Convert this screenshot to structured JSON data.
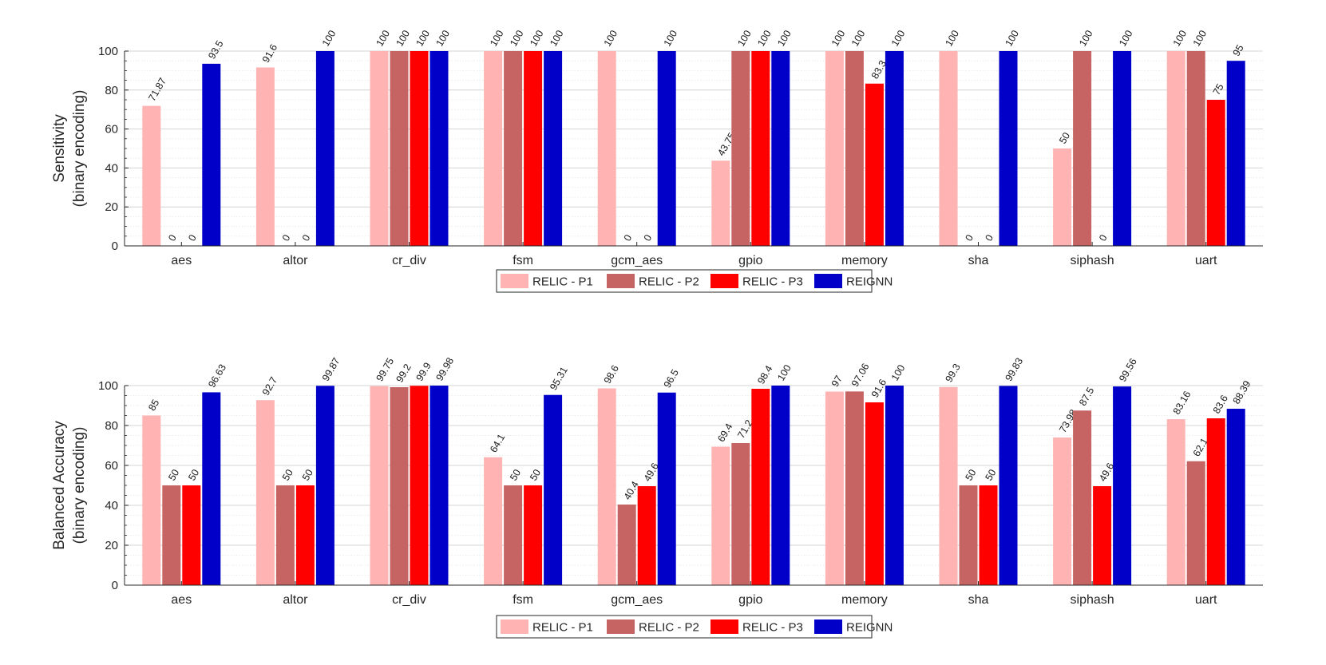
{
  "colors": {
    "series": [
      "#ffb3b3",
      "#c66464",
      "#ff0000",
      "#0000c8"
    ],
    "axis": "#262626",
    "grid": "#dcdcdc"
  },
  "chart_data": [
    {
      "type": "bar",
      "ylabel_lines": [
        "Sensitivity",
        "(binary encoding)"
      ],
      "ylim": [
        0,
        100
      ],
      "yticks": [
        0,
        20,
        40,
        60,
        80,
        100
      ],
      "grid": true,
      "legend_position": "bottom-center",
      "categories": [
        "aes",
        "altor",
        "cr_div",
        "fsm",
        "gcm_aes",
        "gpio",
        "memory",
        "sha",
        "siphash",
        "uart"
      ],
      "series": [
        {
          "name": "RELIC - P1",
          "values": [
            71.87,
            91.6,
            100,
            100,
            100,
            43.75,
            100,
            100,
            50,
            100
          ],
          "labels": [
            "71.87",
            "91.6",
            "100",
            "100",
            "100",
            "43.75",
            "100",
            "100",
            "50",
            "100"
          ]
        },
        {
          "name": "RELIC - P2",
          "values": [
            0,
            0,
            100,
            100,
            0,
            100,
            100,
            0,
            100,
            100
          ],
          "labels": [
            "0",
            "0",
            "100",
            "100",
            "0",
            "100",
            "100",
            "0",
            "100",
            "100"
          ]
        },
        {
          "name": "RELIC - P3",
          "values": [
            0,
            0,
            100,
            100,
            0,
            100,
            83.3,
            0,
            0,
            75
          ],
          "labels": [
            "0",
            "0",
            "100",
            "100",
            "0",
            "100",
            "83.3",
            "0",
            "0",
            "75"
          ]
        },
        {
          "name": "REIGNN",
          "values": [
            93.5,
            100,
            100,
            100,
            100,
            100,
            100,
            100,
            100,
            95
          ],
          "labels": [
            "93.5",
            "100",
            "100",
            "100",
            "100",
            "100",
            "100",
            "100",
            "100",
            "95"
          ]
        }
      ]
    },
    {
      "type": "bar",
      "ylabel_lines": [
        "Balanced Accuracy",
        "(binary encoding)"
      ],
      "ylim": [
        0,
        100
      ],
      "yticks": [
        0,
        20,
        40,
        60,
        80,
        100
      ],
      "grid": true,
      "legend_position": "bottom-center",
      "categories": [
        "aes",
        "altor",
        "cr_div",
        "fsm",
        "gcm_aes",
        "gpio",
        "memory",
        "sha",
        "siphash",
        "uart"
      ],
      "series": [
        {
          "name": "RELIC - P1",
          "values": [
            85,
            92.7,
            99.75,
            64.1,
            98.6,
            69.4,
            97,
            99.3,
            73.98,
            83.16
          ],
          "labels": [
            "85",
            "92.7",
            "99.75",
            "64.1",
            "98.6",
            "69.4",
            "97",
            "99.3",
            "73.98",
            "83.16"
          ]
        },
        {
          "name": "RELIC - P2",
          "values": [
            50,
            50,
            99.2,
            50,
            40.4,
            71.2,
            97.06,
            50,
            87.5,
            62.1
          ],
          "labels": [
            "50",
            "50",
            "99.2",
            "50",
            "40.4",
            "71.2",
            "97.06",
            "50",
            "87.5",
            "62.1"
          ]
        },
        {
          "name": "RELIC - P3",
          "values": [
            50,
            50,
            99.9,
            50,
            49.6,
            98.4,
            91.6,
            50,
            49.6,
            83.6
          ],
          "labels": [
            "50",
            "50",
            "99.9",
            "50",
            "49.6",
            "98.4",
            "91.6",
            "50",
            "49.6",
            "83.6"
          ]
        },
        {
          "name": "REIGNN",
          "values": [
            96.63,
            99.87,
            99.98,
            95.31,
            96.5,
            100,
            100,
            99.83,
            99.56,
            88.39
          ],
          "labels": [
            "96.63",
            "99.87",
            "99.98",
            "95.31",
            "96.5",
            "100",
            "100",
            "99.83",
            "99.56",
            "88.39"
          ]
        }
      ]
    }
  ]
}
